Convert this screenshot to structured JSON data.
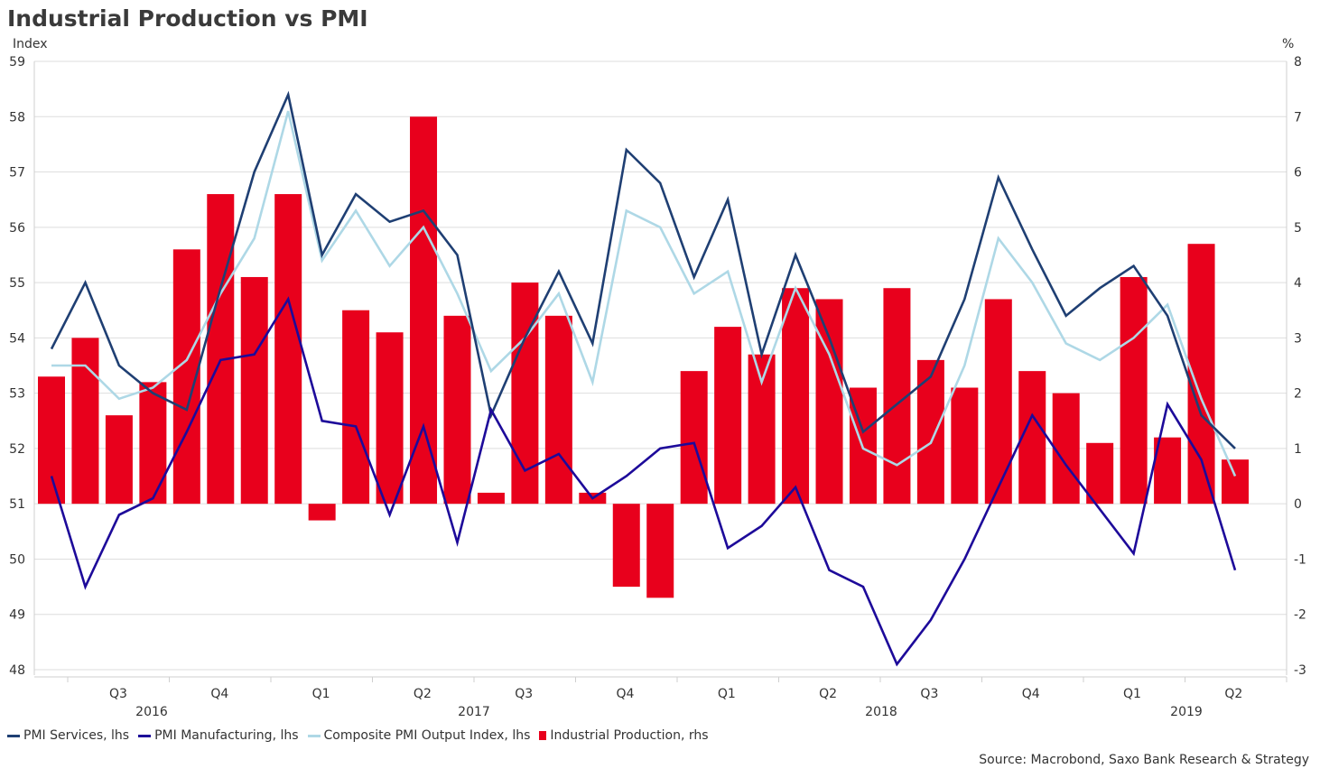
{
  "title": "Industrial Production vs PMI",
  "source": "Source: Macrobond, Saxo Bank Research & Strategy",
  "chart_data": {
    "type": "bar+line",
    "title": "Industrial Production vs PMI",
    "left_axis": {
      "label": "Index",
      "min": 48,
      "max": 59,
      "ticks": [
        48,
        49,
        50,
        51,
        52,
        53,
        54,
        55,
        56,
        57,
        58,
        59
      ]
    },
    "right_axis": {
      "label": "%",
      "min": -3,
      "max": 8,
      "ticks": [
        -3,
        -2,
        -1,
        0,
        1,
        2,
        3,
        4,
        5,
        6,
        7,
        8
      ]
    },
    "quarter_labels": [
      "Q3",
      "Q4",
      "Q1",
      "Q2",
      "Q3",
      "Q4",
      "Q1",
      "Q2",
      "Q3",
      "Q4",
      "Q1",
      "Q2"
    ],
    "year_labels": [
      "2016",
      "2017",
      "2018",
      "2019"
    ],
    "x": [
      "2016-05",
      "2016-06",
      "2016-07",
      "2016-08",
      "2016-09",
      "2016-10",
      "2016-11",
      "2016-12",
      "2017-01",
      "2017-02",
      "2017-03",
      "2017-04",
      "2017-05",
      "2017-06",
      "2017-07",
      "2017-08",
      "2017-09",
      "2017-10",
      "2017-11",
      "2017-12",
      "2018-01",
      "2018-02",
      "2018-03",
      "2018-04",
      "2018-05",
      "2018-06",
      "2018-07",
      "2018-08",
      "2018-09",
      "2018-10",
      "2018-11",
      "2018-12",
      "2019-01",
      "2019-02",
      "2019-03",
      "2019-04"
    ],
    "series": [
      {
        "name": "PMI Services, lhs",
        "axis": "left",
        "type": "line",
        "color": "#1f3f73",
        "values": [
          53.8,
          55.0,
          53.5,
          53.0,
          52.7,
          54.9,
          57.0,
          58.4,
          55.5,
          56.6,
          56.1,
          56.3,
          55.5,
          52.6,
          54.0,
          55.2,
          53.9,
          57.4,
          56.8,
          55.1,
          56.5,
          53.7,
          55.5,
          54.0,
          52.3,
          52.8,
          53.3,
          54.7,
          56.9,
          55.6,
          54.4,
          54.9,
          55.3,
          54.4,
          52.6,
          52.0
        ]
      },
      {
        "name": "PMI Manufacturing, lhs",
        "axis": "left",
        "type": "line",
        "color": "#1d0a9a",
        "values": [
          51.5,
          49.5,
          50.8,
          51.1,
          52.3,
          53.6,
          53.7,
          54.7,
          52.5,
          52.4,
          50.8,
          52.4,
          50.3,
          52.7,
          51.6,
          51.9,
          51.1,
          51.5,
          52.0,
          52.1,
          50.2,
          50.6,
          51.3,
          49.8,
          49.5,
          48.1,
          48.9,
          50.0,
          51.3,
          52.6,
          51.7,
          50.9,
          50.1,
          52.8,
          51.8,
          49.8
        ]
      },
      {
        "name": "Composite PMI Output Index, lhs",
        "axis": "left",
        "type": "line",
        "color": "#aed8e6",
        "values": [
          53.5,
          53.5,
          52.9,
          53.1,
          53.6,
          54.8,
          55.8,
          58.1,
          55.4,
          56.3,
          55.3,
          56.0,
          54.8,
          53.4,
          54.0,
          54.8,
          53.2,
          56.3,
          56.0,
          54.8,
          55.2,
          53.2,
          54.9,
          53.7,
          52.0,
          51.7,
          52.1,
          53.5,
          55.8,
          55.0,
          53.9,
          53.6,
          54.0,
          54.6,
          52.9,
          51.5
        ]
      },
      {
        "name": "Industrial Production, rhs",
        "axis": "right",
        "type": "bar",
        "color": "#e8001c",
        "values": [
          2.3,
          3.0,
          1.6,
          2.2,
          4.6,
          5.6,
          4.1,
          5.6,
          -0.3,
          3.5,
          3.1,
          7.0,
          3.4,
          0.2,
          4.0,
          3.4,
          0.2,
          -1.5,
          -1.7,
          2.4,
          3.2,
          2.7,
          3.9,
          3.7,
          2.1,
          3.9,
          2.6,
          2.1,
          3.7,
          2.4,
          2.0,
          1.1,
          4.1,
          1.2,
          4.7,
          0.8
        ]
      }
    ],
    "grid": true,
    "legend_position": "bottom-left"
  }
}
